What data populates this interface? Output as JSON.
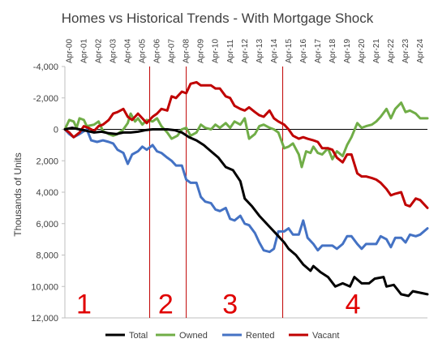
{
  "chart_data": {
    "type": "line",
    "title": "Homes vs Historical Trends - With Mortgage Shock",
    "xlabel": "",
    "ylabel": "Thousands of Units",
    "y_reversed": true,
    "ylim": [
      -4000,
      12000
    ],
    "y_ticks": [
      -4000,
      -2000,
      0,
      2000,
      4000,
      6000,
      8000,
      10000,
      12000
    ],
    "y_tick_labels": [
      "-4,000",
      "-2,000",
      "0",
      "2,000",
      "4,000",
      "6,000",
      "8,000",
      "10,000",
      "12,000"
    ],
    "x_tick_labels": [
      "Apr-00",
      "Apr-01",
      "Apr-02",
      "Apr-03",
      "Apr-04",
      "Apr-05",
      "Apr-06",
      "Apr-07",
      "Apr-08",
      "Apr-09",
      "Apr-10",
      "Apr-11",
      "Apr-12",
      "Apr-13",
      "Apr-14",
      "Apr-15",
      "Apr-16",
      "Apr-17",
      "Apr-18",
      "Apr-19",
      "Apr-20",
      "Apr-21",
      "Apr-22",
      "Apr-23",
      "Apr-24"
    ],
    "x_label_note": "x values are years measured from the start of the plot (Jan-2000 = 0); Apr-00 = 0.25",
    "xlim": [
      0,
      24.8
    ],
    "grid": false,
    "legend_position": "bottom",
    "series": [
      {
        "name": "Total",
        "color": "#000000",
        "points": [
          [
            0,
            0
          ],
          [
            0.5,
            -100
          ],
          [
            1,
            0
          ],
          [
            1.5,
            100
          ],
          [
            2,
            200
          ],
          [
            2.5,
            150
          ],
          [
            3,
            250
          ],
          [
            3.5,
            300
          ],
          [
            4,
            200
          ],
          [
            4.5,
            200
          ],
          [
            5,
            150
          ],
          [
            5.5,
            50
          ],
          [
            6,
            0
          ],
          [
            6.5,
            0
          ],
          [
            7,
            0
          ],
          [
            7.5,
            50
          ],
          [
            8,
            200
          ],
          [
            8.5,
            500
          ],
          [
            9,
            700
          ],
          [
            9.5,
            1000
          ],
          [
            10,
            1400
          ],
          [
            10.5,
            1800
          ],
          [
            11,
            2400
          ],
          [
            11.5,
            2600
          ],
          [
            12,
            3300
          ],
          [
            12.3,
            4400
          ],
          [
            12.8,
            4900
          ],
          [
            13.3,
            5500
          ],
          [
            14,
            6200
          ],
          [
            14.5,
            6700
          ],
          [
            15,
            7200
          ],
          [
            15.3,
            7600
          ],
          [
            15.8,
            8000
          ],
          [
            16.3,
            8600
          ],
          [
            16.8,
            9000
          ],
          [
            17,
            8700
          ],
          [
            17.5,
            9100
          ],
          [
            18,
            9400
          ],
          [
            18.5,
            10000
          ],
          [
            19,
            9800
          ],
          [
            19.5,
            10000
          ],
          [
            19.8,
            9400
          ],
          [
            20.3,
            9800
          ],
          [
            20.8,
            9800
          ],
          [
            21.2,
            9500
          ],
          [
            21.8,
            9400
          ],
          [
            22,
            10000
          ],
          [
            22.5,
            9900
          ],
          [
            23,
            10500
          ],
          [
            23.5,
            10600
          ],
          [
            23.8,
            10300
          ],
          [
            24.3,
            10400
          ],
          [
            24.8,
            10500
          ]
        ]
      },
      {
        "name": "Owned",
        "color": "#70ad47",
        "points": [
          [
            0,
            0
          ],
          [
            0.3,
            -600
          ],
          [
            0.6,
            -500
          ],
          [
            0.8,
            -100
          ],
          [
            1,
            -700
          ],
          [
            1.3,
            -600
          ],
          [
            1.5,
            -200
          ],
          [
            2,
            -300
          ],
          [
            2.3,
            -500
          ],
          [
            2.6,
            100
          ],
          [
            3,
            300
          ],
          [
            3.3,
            400
          ],
          [
            3.6,
            300
          ],
          [
            4,
            0
          ],
          [
            4.3,
            -400
          ],
          [
            4.5,
            -1000
          ],
          [
            4.8,
            -500
          ],
          [
            5,
            -700
          ],
          [
            5.3,
            -300
          ],
          [
            5.6,
            -600
          ],
          [
            6,
            -500
          ],
          [
            6.3,
            -700
          ],
          [
            6.6,
            -200
          ],
          [
            7,
            200
          ],
          [
            7.3,
            600
          ],
          [
            7.7,
            400
          ],
          [
            8,
            0
          ],
          [
            8.3,
            -100
          ],
          [
            8.6,
            400
          ],
          [
            9,
            200
          ],
          [
            9.3,
            -300
          ],
          [
            9.6,
            -100
          ],
          [
            10,
            0
          ],
          [
            10.3,
            -300
          ],
          [
            10.6,
            -100
          ],
          [
            11,
            -400
          ],
          [
            11.3,
            -100
          ],
          [
            11.6,
            -500
          ],
          [
            12,
            -300
          ],
          [
            12.3,
            -700
          ],
          [
            12.6,
            600
          ],
          [
            13,
            300
          ],
          [
            13.3,
            -200
          ],
          [
            13.6,
            -300
          ],
          [
            14,
            -100
          ],
          [
            14.3,
            0
          ],
          [
            14.6,
            200
          ],
          [
            15,
            1200
          ],
          [
            15.3,
            1100
          ],
          [
            15.6,
            900
          ],
          [
            16,
            1600
          ],
          [
            16.2,
            2400
          ],
          [
            16.5,
            1400
          ],
          [
            16.8,
            1500
          ],
          [
            17,
            1100
          ],
          [
            17.3,
            1500
          ],
          [
            17.6,
            1600
          ],
          [
            18,
            1200
          ],
          [
            18.3,
            1900
          ],
          [
            18.6,
            1400
          ],
          [
            19,
            1700
          ],
          [
            19.3,
            1000
          ],
          [
            19.6,
            500
          ],
          [
            20,
            -400
          ],
          [
            20.3,
            -100
          ],
          [
            20.6,
            -200
          ],
          [
            21,
            -300
          ],
          [
            21.3,
            -500
          ],
          [
            21.6,
            -800
          ],
          [
            22,
            -1300
          ],
          [
            22.3,
            -700
          ],
          [
            22.6,
            -1300
          ],
          [
            23,
            -1700
          ],
          [
            23.3,
            -1100
          ],
          [
            23.6,
            -1200
          ],
          [
            24,
            -1000
          ],
          [
            24.3,
            -700
          ],
          [
            24.8,
            -700
          ]
        ]
      },
      {
        "name": "Rented",
        "color": "#4472c4",
        "points": [
          [
            0,
            0
          ],
          [
            0.3,
            300
          ],
          [
            0.6,
            500
          ],
          [
            1,
            300
          ],
          [
            1.5,
            0
          ],
          [
            1.8,
            700
          ],
          [
            2.2,
            800
          ],
          [
            2.6,
            700
          ],
          [
            3,
            800
          ],
          [
            3.3,
            900
          ],
          [
            3.6,
            1300
          ],
          [
            4,
            1500
          ],
          [
            4.3,
            2200
          ],
          [
            4.6,
            1600
          ],
          [
            5,
            1400
          ],
          [
            5.3,
            1100
          ],
          [
            5.6,
            1300
          ],
          [
            6,
            1000
          ],
          [
            6.3,
            1400
          ],
          [
            6.6,
            1500
          ],
          [
            7,
            1800
          ],
          [
            7.3,
            2000
          ],
          [
            7.6,
            2300
          ],
          [
            8,
            2300
          ],
          [
            8.3,
            3200
          ],
          [
            8.6,
            3400
          ],
          [
            9,
            3400
          ],
          [
            9.3,
            4300
          ],
          [
            9.6,
            4600
          ],
          [
            10,
            4700
          ],
          [
            10.3,
            5100
          ],
          [
            10.6,
            5200
          ],
          [
            11,
            5000
          ],
          [
            11.3,
            5700
          ],
          [
            11.6,
            5800
          ],
          [
            12,
            5500
          ],
          [
            12.3,
            6000
          ],
          [
            12.6,
            6100
          ],
          [
            13,
            6600
          ],
          [
            13.3,
            7200
          ],
          [
            13.6,
            7700
          ],
          [
            14,
            7800
          ],
          [
            14.3,
            7600
          ],
          [
            14.6,
            6500
          ],
          [
            15,
            6500
          ],
          [
            15.3,
            6300
          ],
          [
            15.6,
            6700
          ],
          [
            16,
            6700
          ],
          [
            16.3,
            5800
          ],
          [
            16.6,
            6900
          ],
          [
            17,
            7300
          ],
          [
            17.3,
            7700
          ],
          [
            17.6,
            7400
          ],
          [
            18,
            7400
          ],
          [
            18.3,
            7400
          ],
          [
            18.6,
            7600
          ],
          [
            19,
            7300
          ],
          [
            19.3,
            6800
          ],
          [
            19.6,
            6800
          ],
          [
            20,
            7300
          ],
          [
            20.3,
            7600
          ],
          [
            20.6,
            7300
          ],
          [
            21,
            7300
          ],
          [
            21.3,
            7300
          ],
          [
            21.6,
            6800
          ],
          [
            22,
            7000
          ],
          [
            22.3,
            7500
          ],
          [
            22.6,
            6900
          ],
          [
            23,
            6900
          ],
          [
            23.3,
            7200
          ],
          [
            23.6,
            6700
          ],
          [
            24,
            6800
          ],
          [
            24.3,
            6700
          ],
          [
            24.8,
            6300
          ]
        ]
      },
      {
        "name": "Vacant",
        "color": "#c00000",
        "points": [
          [
            0,
            0
          ],
          [
            0.3,
            200
          ],
          [
            0.6,
            500
          ],
          [
            1,
            200
          ],
          [
            1.3,
            -200
          ],
          [
            1.6,
            -100
          ],
          [
            2,
            100
          ],
          [
            2.3,
            -200
          ],
          [
            2.6,
            -300
          ],
          [
            3,
            -600
          ],
          [
            3.3,
            -1000
          ],
          [
            3.6,
            -1100
          ],
          [
            4,
            -1300
          ],
          [
            4.3,
            -800
          ],
          [
            4.6,
            -600
          ],
          [
            5,
            -1000
          ],
          [
            5.3,
            -700
          ],
          [
            5.6,
            -400
          ],
          [
            6,
            -800
          ],
          [
            6.3,
            -1000
          ],
          [
            6.6,
            -1300
          ],
          [
            7,
            -1200
          ],
          [
            7.3,
            -2100
          ],
          [
            7.6,
            -2000
          ],
          [
            8,
            -2400
          ],
          [
            8.3,
            -2300
          ],
          [
            8.6,
            -2900
          ],
          [
            9,
            -3000
          ],
          [
            9.3,
            -2800
          ],
          [
            9.6,
            -2800
          ],
          [
            10,
            -2800
          ],
          [
            10.3,
            -2600
          ],
          [
            10.6,
            -2600
          ],
          [
            11,
            -2100
          ],
          [
            11.3,
            -2000
          ],
          [
            11.6,
            -1500
          ],
          [
            12,
            -1300
          ],
          [
            12.3,
            -1200
          ],
          [
            12.6,
            -1400
          ],
          [
            13,
            -1100
          ],
          [
            13.3,
            -900
          ],
          [
            13.6,
            -800
          ],
          [
            14,
            -1200
          ],
          [
            14.3,
            -700
          ],
          [
            14.6,
            -500
          ],
          [
            15,
            -300
          ],
          [
            15.3,
            0
          ],
          [
            15.6,
            400
          ],
          [
            16,
            600
          ],
          [
            16.3,
            500
          ],
          [
            16.6,
            600
          ],
          [
            17,
            700
          ],
          [
            17.3,
            800
          ],
          [
            17.6,
            1200
          ],
          [
            18,
            1200
          ],
          [
            18.3,
            1300
          ],
          [
            18.6,
            1800
          ],
          [
            19,
            2100
          ],
          [
            19.3,
            1600
          ],
          [
            19.6,
            1600
          ],
          [
            20,
            2800
          ],
          [
            20.3,
            3000
          ],
          [
            20.6,
            3000
          ],
          [
            21,
            3100
          ],
          [
            21.3,
            3200
          ],
          [
            21.6,
            3400
          ],
          [
            22,
            3800
          ],
          [
            22.3,
            4200
          ],
          [
            22.6,
            4100
          ],
          [
            23,
            4000
          ],
          [
            23.3,
            4800
          ],
          [
            23.6,
            4900
          ],
          [
            24,
            4400
          ],
          [
            24.3,
            4500
          ],
          [
            24.8,
            5000
          ]
        ]
      }
    ],
    "markers": [
      {
        "x": 5.8,
        "color": "#c00000"
      },
      {
        "x": 8.3,
        "color": "#c00000"
      },
      {
        "x": 14.9,
        "color": "#c00000"
      }
    ],
    "annotations": [
      {
        "text": "1",
        "x": 1.3,
        "y": 11100,
        "color": "#e00000"
      },
      {
        "text": "2",
        "x": 6.9,
        "y": 11100,
        "color": "#e00000"
      },
      {
        "text": "3",
        "x": 11.3,
        "y": 11100,
        "color": "#e00000"
      },
      {
        "text": "4",
        "x": 19.7,
        "y": 11100,
        "color": "#e00000"
      }
    ]
  }
}
